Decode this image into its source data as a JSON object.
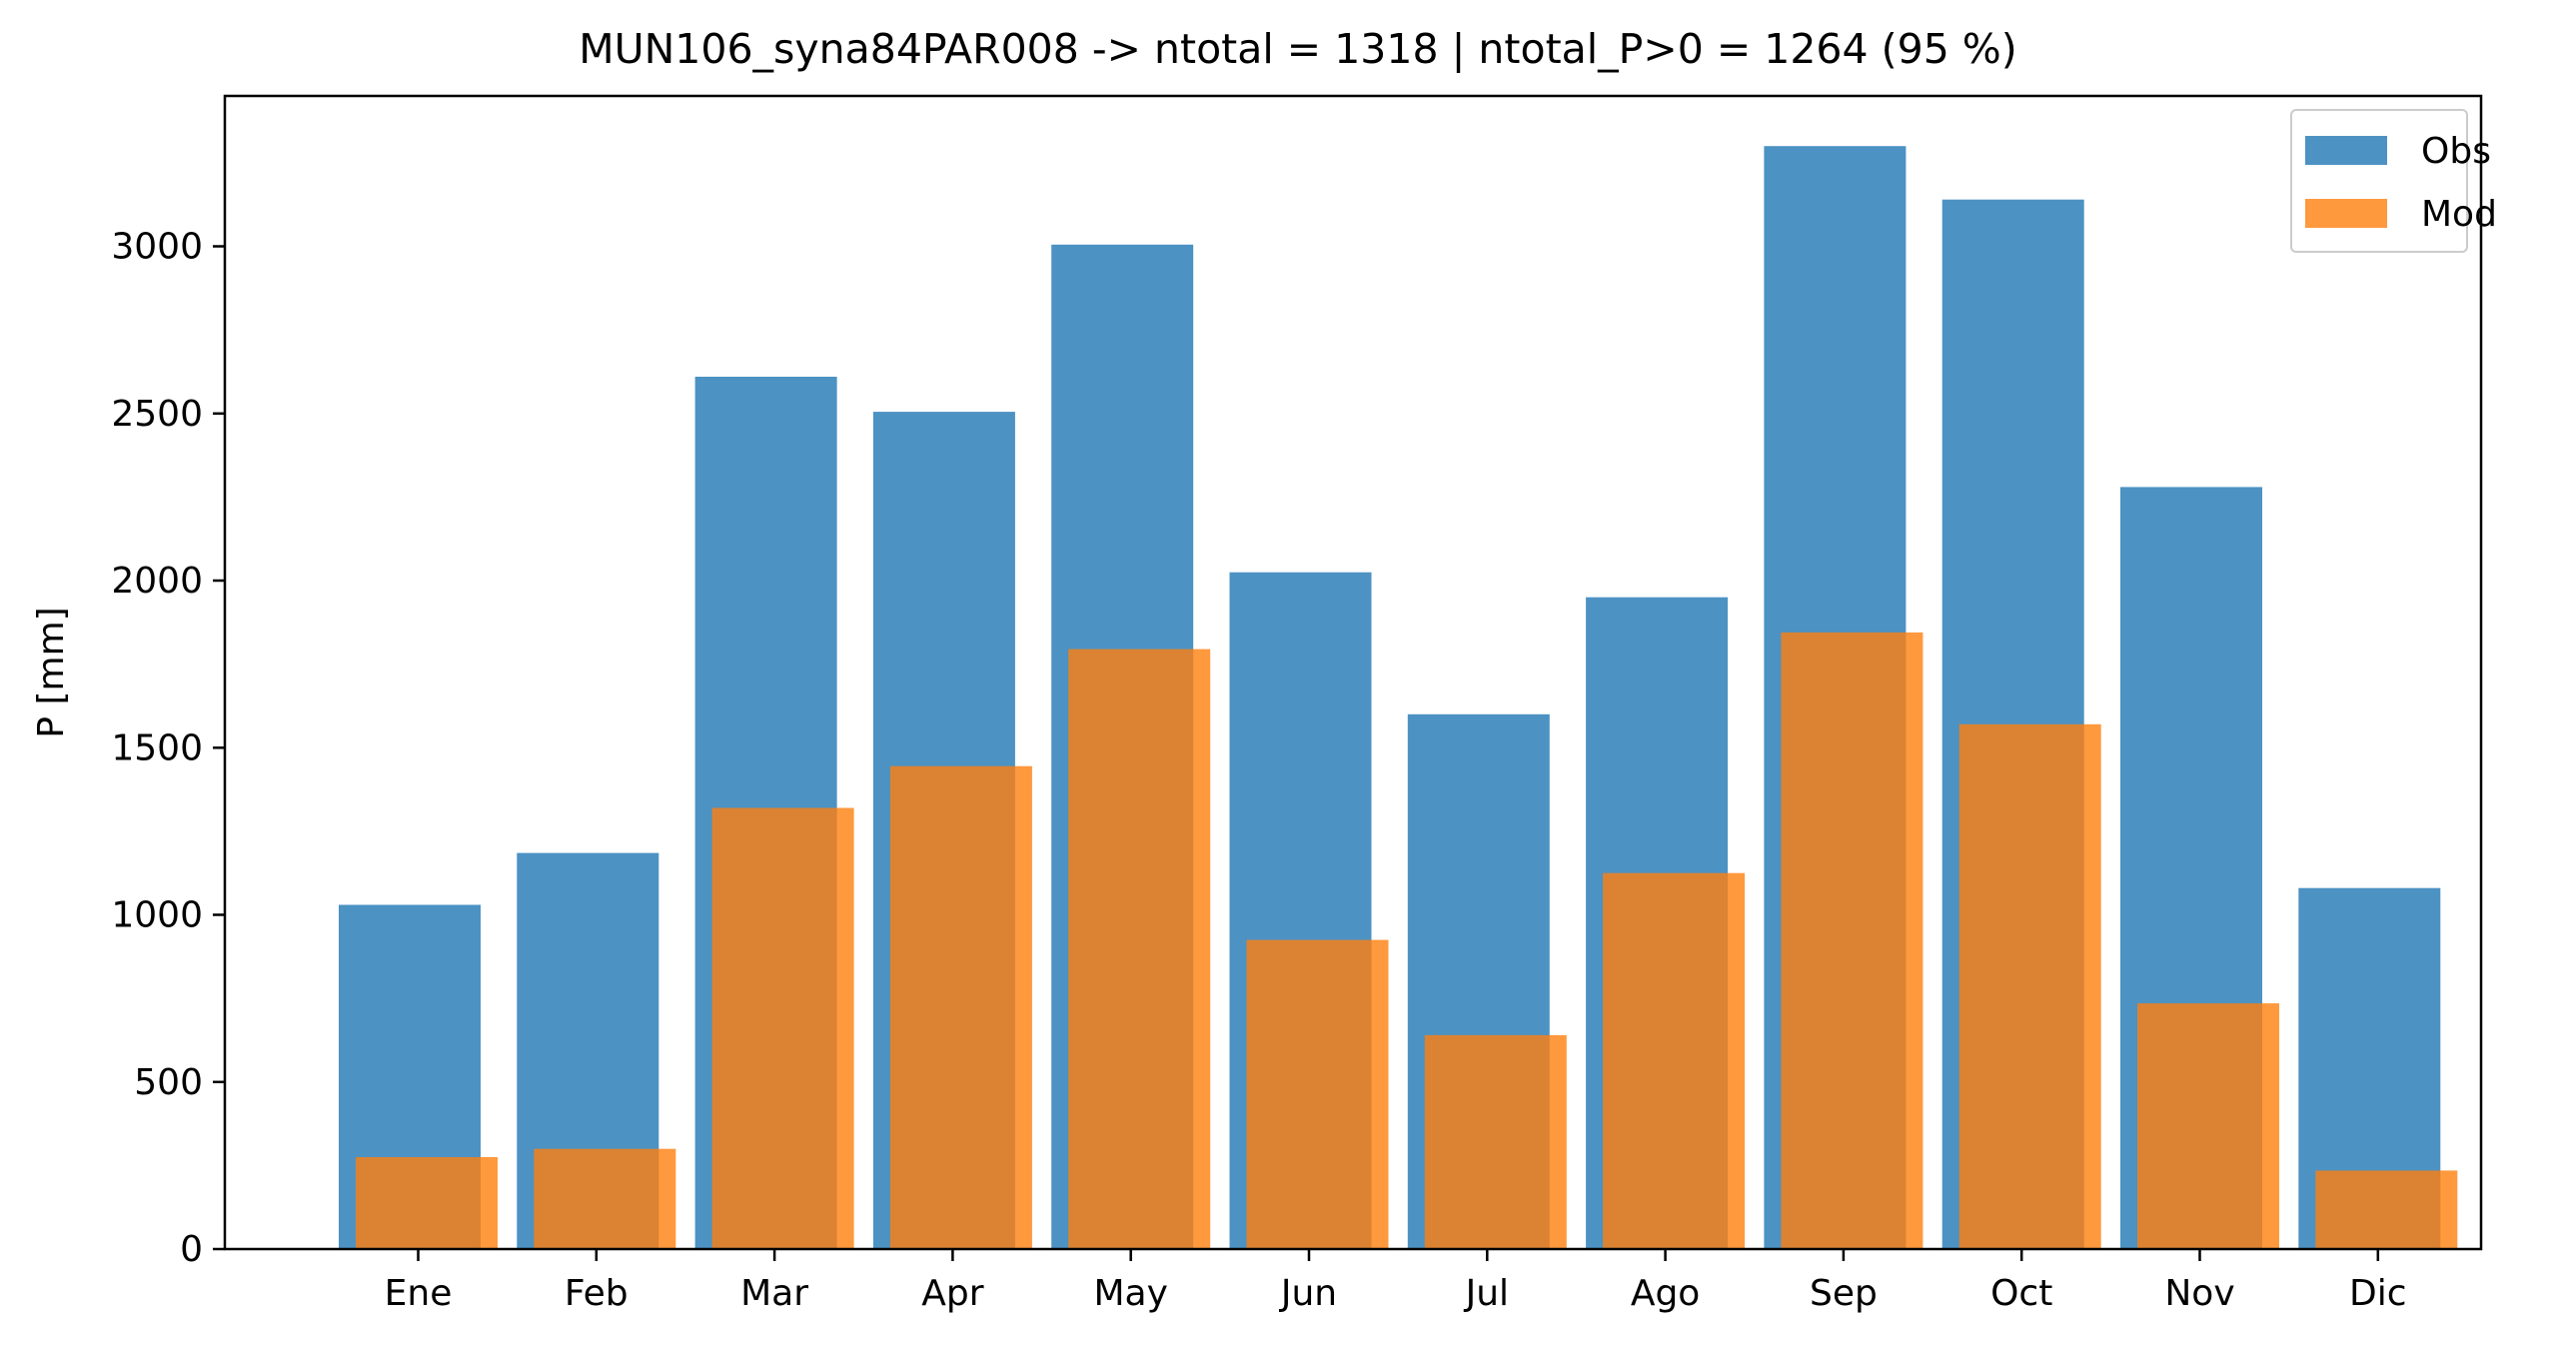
{
  "chart_data": {
    "type": "bar",
    "title": "MUN106_syna84PAR008 -> ntotal = 1318 | ntotal_P>0 = 1264 (95 %)",
    "xlabel": "",
    "ylabel": "P [mm]",
    "categories": [
      "Ene",
      "Feb",
      "Mar",
      "Apr",
      "May",
      "Jun",
      "Jul",
      "Ago",
      "Sep",
      "Oct",
      "Nov",
      "Dic"
    ],
    "yticks": [
      "0",
      "500",
      "1000",
      "1500",
      "2000",
      "2500",
      "3000"
    ],
    "ylim": [
      0,
      3450
    ],
    "grid": false,
    "legend_position": "top-right",
    "series": [
      {
        "name": "Obs",
        "color": "#1f77b4",
        "values": [
          1030,
          1185,
          2610,
          2505,
          3005,
          2025,
          1600,
          1950,
          3300,
          3140,
          2280,
          1080
        ]
      },
      {
        "name": "Mod",
        "color": "#ff7f0e",
        "values": [
          275,
          300,
          1320,
          1445,
          1795,
          925,
          640,
          1125,
          1845,
          1570,
          735,
          235
        ]
      }
    ]
  }
}
